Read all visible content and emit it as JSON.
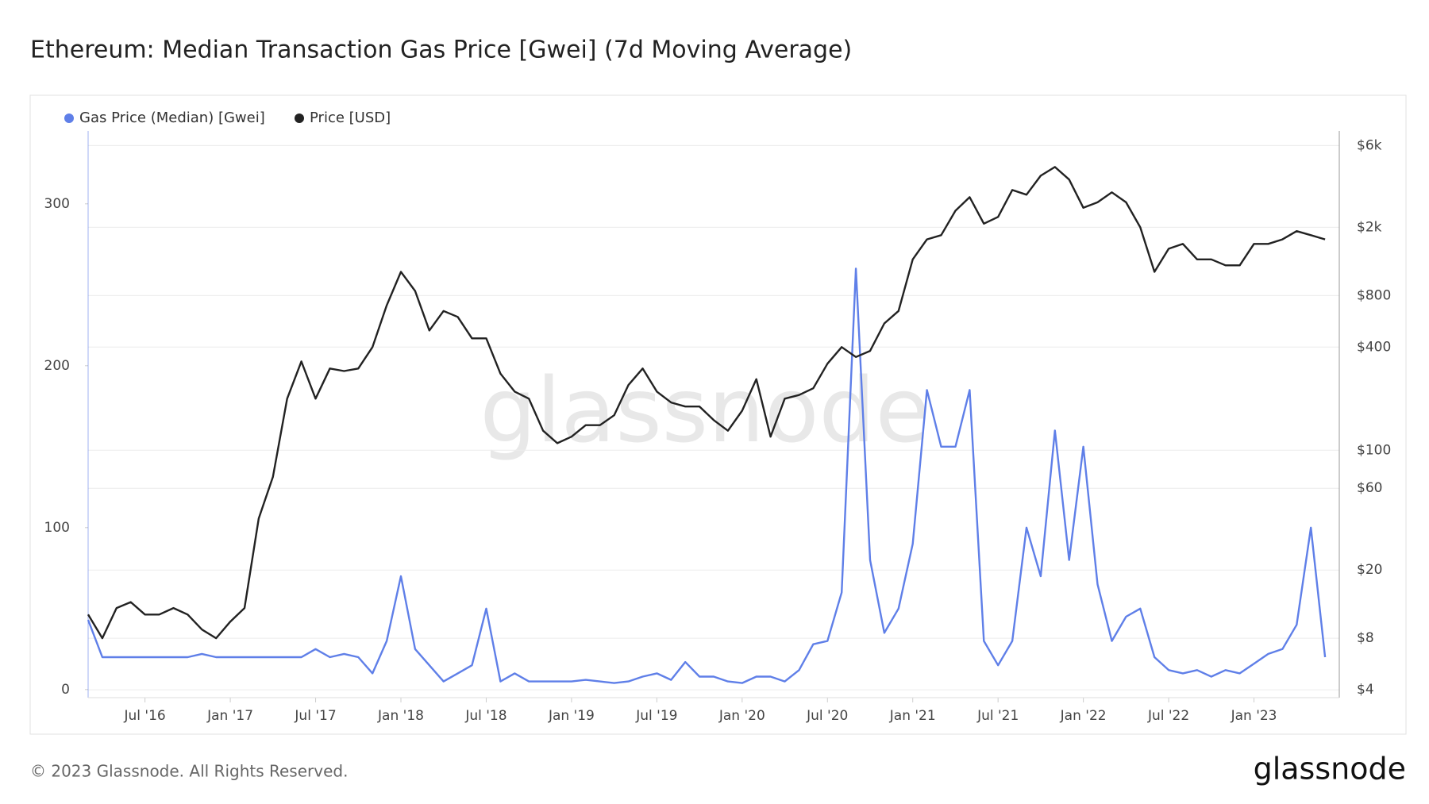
{
  "chart_data": {
    "type": "line",
    "title": "Ethereum: Median Transaction Gas Price [Gwei] (7d Moving Average)",
    "watermark": "glassnode",
    "footer": "© 2023 Glassnode. All Rights Reserved.",
    "brand": "glassnode",
    "grid": true,
    "x": [
      "2016-03",
      "2016-04",
      "2016-05",
      "2016-06",
      "2016-07",
      "2016-08",
      "2016-09",
      "2016-10",
      "2016-11",
      "2016-12",
      "2017-01",
      "2017-02",
      "2017-03",
      "2017-04",
      "2017-05",
      "2017-06",
      "2017-07",
      "2017-08",
      "2017-09",
      "2017-10",
      "2017-11",
      "2017-12",
      "2018-01",
      "2018-02",
      "2018-03",
      "2018-04",
      "2018-05",
      "2018-06",
      "2018-07",
      "2018-08",
      "2018-09",
      "2018-10",
      "2018-11",
      "2018-12",
      "2019-01",
      "2019-02",
      "2019-03",
      "2019-04",
      "2019-05",
      "2019-06",
      "2019-07",
      "2019-08",
      "2019-09",
      "2019-10",
      "2019-11",
      "2019-12",
      "2020-01",
      "2020-02",
      "2020-03",
      "2020-04",
      "2020-05",
      "2020-06",
      "2020-07",
      "2020-08",
      "2020-09",
      "2020-10",
      "2020-11",
      "2020-12",
      "2021-01",
      "2021-02",
      "2021-03",
      "2021-04",
      "2021-05",
      "2021-06",
      "2021-07",
      "2021-08",
      "2021-09",
      "2021-10",
      "2021-11",
      "2021-12",
      "2022-01",
      "2022-02",
      "2022-03",
      "2022-04",
      "2022-05",
      "2022-06",
      "2022-07",
      "2022-08",
      "2022-09",
      "2022-10",
      "2022-11",
      "2022-12",
      "2023-01",
      "2023-02",
      "2023-03",
      "2023-04",
      "2023-05",
      "2023-06"
    ],
    "xlim": [
      "2016-03",
      "2023-07"
    ],
    "xticks": [
      {
        "value": "2016-07",
        "label": "Jul '16"
      },
      {
        "value": "2017-01",
        "label": "Jan '17"
      },
      {
        "value": "2017-07",
        "label": "Jul '17"
      },
      {
        "value": "2018-01",
        "label": "Jan '18"
      },
      {
        "value": "2018-07",
        "label": "Jul '18"
      },
      {
        "value": "2019-01",
        "label": "Jan '19"
      },
      {
        "value": "2019-07",
        "label": "Jul '19"
      },
      {
        "value": "2020-01",
        "label": "Jan '20"
      },
      {
        "value": "2020-07",
        "label": "Jul '20"
      },
      {
        "value": "2021-01",
        "label": "Jan '21"
      },
      {
        "value": "2021-07",
        "label": "Jul '21"
      },
      {
        "value": "2022-01",
        "label": "Jan '22"
      },
      {
        "value": "2022-07",
        "label": "Jul '22"
      },
      {
        "value": "2023-01",
        "label": "Jan '23"
      }
    ],
    "ylim": [
      -5,
      345
    ],
    "yticks": [
      0,
      100,
      200,
      300
    ],
    "y2lim": [
      3.6,
      7300
    ],
    "y2log": true,
    "y2ticks": [
      {
        "value": 4,
        "label": "$4"
      },
      {
        "value": 8,
        "label": "$8"
      },
      {
        "value": 20,
        "label": "$20"
      },
      {
        "value": 60,
        "label": "$60"
      },
      {
        "value": 100,
        "label": "$100"
      },
      {
        "value": 400,
        "label": "$400"
      },
      {
        "value": 800,
        "label": "$800"
      },
      {
        "value": 2000,
        "label": "$2k"
      },
      {
        "value": 6000,
        "label": "$6k"
      }
    ],
    "series": [
      {
        "name": "Gas Price (Median) [Gwei]",
        "color": "#5f7fe8",
        "values": [
          43,
          20,
          20,
          20,
          20,
          20,
          20,
          20,
          22,
          20,
          20,
          20,
          20,
          20,
          20,
          20,
          25,
          20,
          22,
          20,
          10,
          30,
          70,
          25,
          15,
          5,
          10,
          15,
          50,
          5,
          10,
          5,
          5,
          5,
          5,
          6,
          5,
          4,
          5,
          8,
          10,
          6,
          17,
          8,
          8,
          5,
          4,
          8,
          8,
          5,
          12,
          28,
          30,
          60,
          260,
          80,
          35,
          50,
          90,
          185,
          150,
          150,
          185,
          30,
          15,
          30,
          100,
          70,
          160,
          80,
          150,
          65,
          30,
          45,
          50,
          20,
          12,
          10,
          12,
          8,
          12,
          10,
          16,
          22,
          25,
          40,
          100,
          20
        ]
      },
      {
        "name": "Price [USD]",
        "color": "#222222",
        "axis": "y2",
        "values": [
          11,
          8,
          12,
          13,
          11,
          11,
          12,
          11,
          9,
          8,
          10,
          12,
          40,
          70,
          200,
          330,
          200,
          300,
          290,
          300,
          400,
          700,
          1100,
          850,
          500,
          650,
          600,
          450,
          450,
          280,
          220,
          200,
          130,
          110,
          120,
          140,
          140,
          160,
          240,
          300,
          220,
          190,
          180,
          180,
          150,
          130,
          170,
          260,
          120,
          200,
          210,
          230,
          320,
          400,
          350,
          380,
          550,
          650,
          1300,
          1700,
          1800,
          2500,
          3000,
          2100,
          2300,
          3300,
          3100,
          4000,
          4500,
          3800,
          2600,
          2800,
          3200,
          2800,
          2000,
          1100,
          1500,
          1600,
          1300,
          1300,
          1200,
          1200,
          1600,
          1600,
          1700,
          1900,
          1800,
          1700
        ]
      }
    ]
  }
}
